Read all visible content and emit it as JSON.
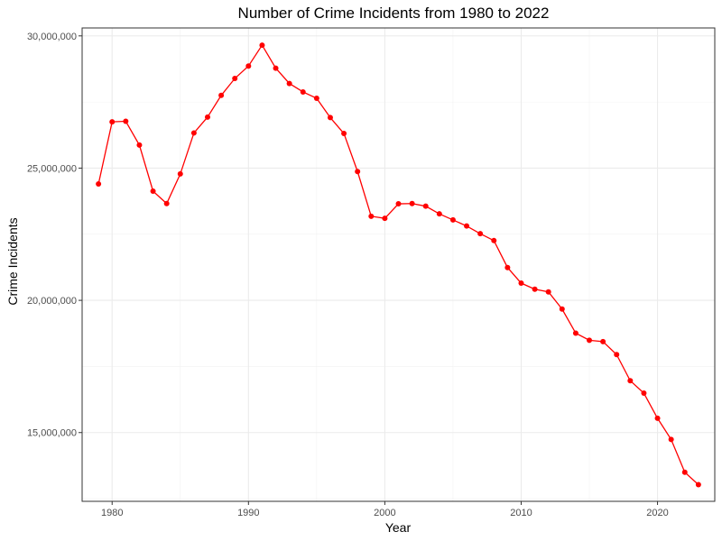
{
  "chart_data": {
    "type": "line",
    "title": "Number of Crime Incidents from 1980 to 2022",
    "xlabel": "Year",
    "ylabel": "Crime Incidents",
    "xlim": [
      1977.8,
      2024.2
    ],
    "ylim": [
      12400000,
      30300000
    ],
    "x_ticks": [
      1980,
      1990,
      2000,
      2010,
      2020
    ],
    "x_tick_labels": [
      "1980",
      "1990",
      "2000",
      "2010",
      "2020"
    ],
    "y_ticks": [
      15000000,
      20000000,
      25000000,
      30000000
    ],
    "y_tick_labels": [
      "15,000,000",
      "20,000,000",
      "25,000,000",
      "30,000,000"
    ],
    "grid": true,
    "series": [
      {
        "color": "#ff0000",
        "points": [
          [
            1979,
            24400000
          ],
          [
            1980,
            26750000
          ],
          [
            1981,
            26770000
          ],
          [
            1982,
            25870000
          ],
          [
            1983,
            24130000
          ],
          [
            1984,
            23660000
          ],
          [
            1985,
            24780000
          ],
          [
            1986,
            26330000
          ],
          [
            1987,
            26930000
          ],
          [
            1988,
            27750000
          ],
          [
            1989,
            28390000
          ],
          [
            1990,
            28860000
          ],
          [
            1991,
            29650000
          ],
          [
            1992,
            28780000
          ],
          [
            1993,
            28200000
          ],
          [
            1994,
            27880000
          ],
          [
            1995,
            27640000
          ],
          [
            1996,
            26910000
          ],
          [
            1997,
            26310000
          ],
          [
            1998,
            24870000
          ],
          [
            1999,
            23180000
          ],
          [
            2000,
            23100000
          ],
          [
            2001,
            23650000
          ],
          [
            2002,
            23660000
          ],
          [
            2003,
            23560000
          ],
          [
            2004,
            23270000
          ],
          [
            2005,
            23040000
          ],
          [
            2006,
            22810000
          ],
          [
            2007,
            22520000
          ],
          [
            2008,
            22260000
          ],
          [
            2009,
            21240000
          ],
          [
            2010,
            20650000
          ],
          [
            2011,
            20420000
          ],
          [
            2012,
            20320000
          ],
          [
            2013,
            19670000
          ],
          [
            2014,
            18760000
          ],
          [
            2015,
            18490000
          ],
          [
            2016,
            18440000
          ],
          [
            2017,
            17950000
          ],
          [
            2018,
            16960000
          ],
          [
            2019,
            16490000
          ],
          [
            2020,
            15540000
          ],
          [
            2021,
            14740000
          ],
          [
            2022,
            13500000
          ],
          [
            2023,
            13030000
          ]
        ]
      }
    ]
  }
}
